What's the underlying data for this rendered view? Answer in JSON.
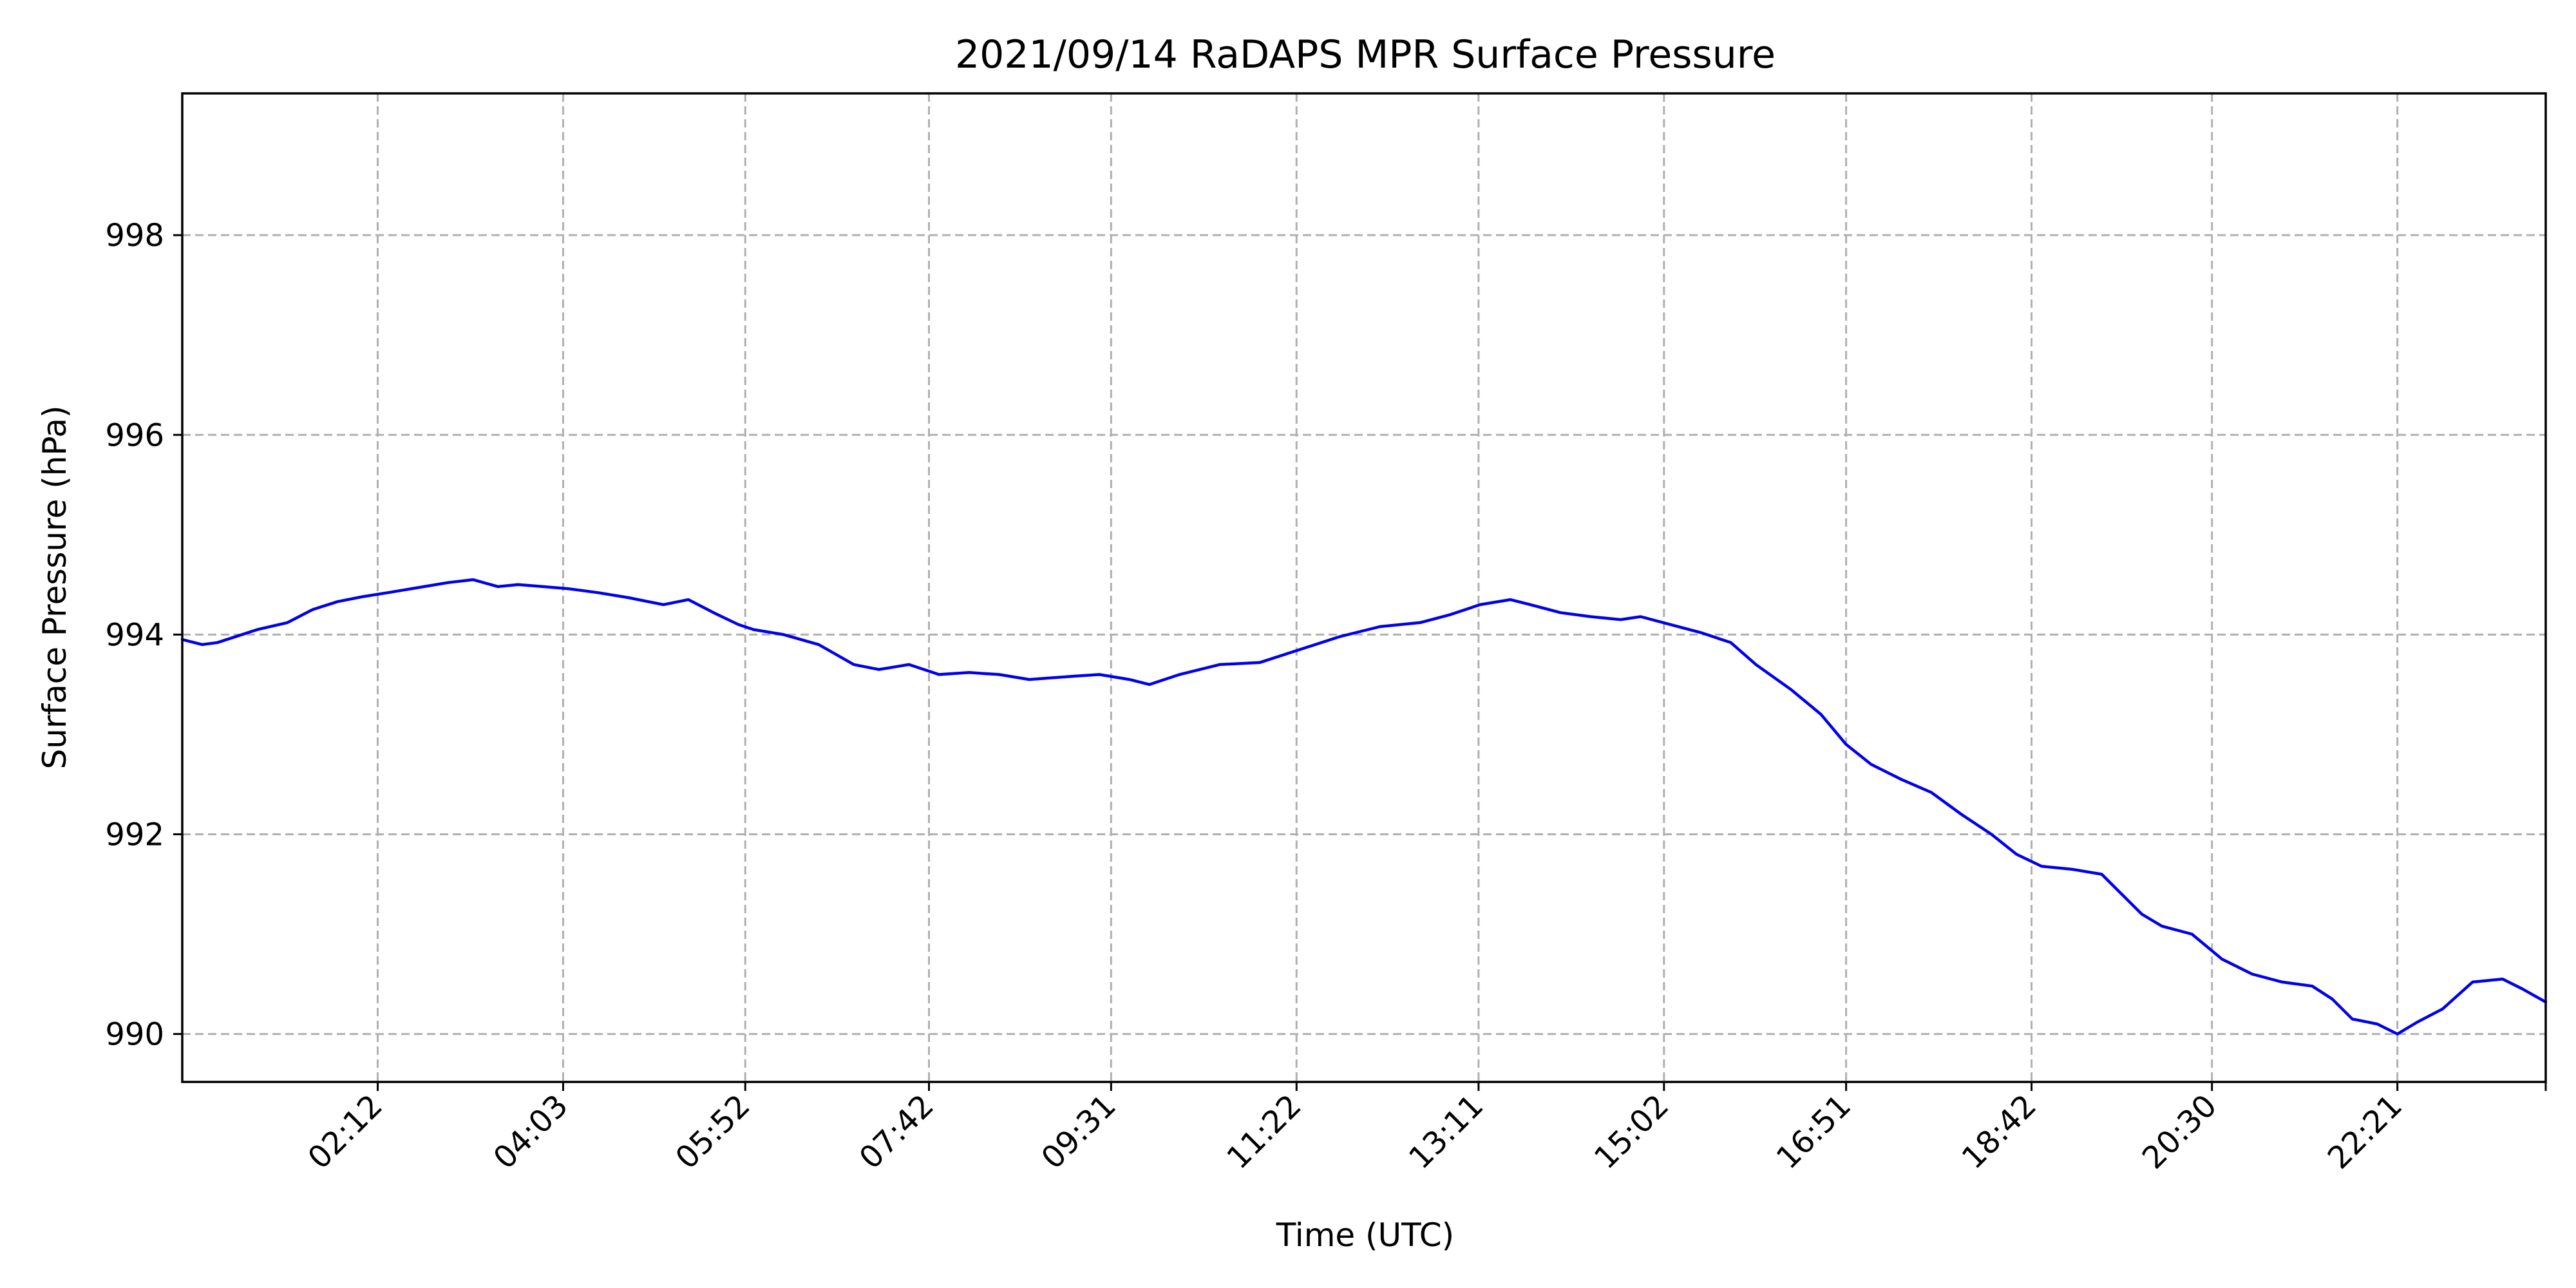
{
  "chart_data": {
    "type": "line",
    "title": "2021/09/14 RaDAPS MPR Surface Pressure",
    "xlabel": "Time (UTC)",
    "ylabel": "Surface Pressure (hPa)",
    "x_unit": "hours UTC",
    "xlim": [
      0.25,
      23.83
    ],
    "ylim": [
      989.52,
      999.42
    ],
    "x_ticks": [
      {
        "value": 2.2,
        "label": "02:12"
      },
      {
        "value": 4.05,
        "label": "04:03"
      },
      {
        "value": 5.867,
        "label": "05:52"
      },
      {
        "value": 7.7,
        "label": "07:42"
      },
      {
        "value": 9.517,
        "label": "09:31"
      },
      {
        "value": 11.367,
        "label": "11:22"
      },
      {
        "value": 13.183,
        "label": "13:11"
      },
      {
        "value": 15.033,
        "label": "15:02"
      },
      {
        "value": 16.85,
        "label": "16:51"
      },
      {
        "value": 18.7,
        "label": "18:42"
      },
      {
        "value": 20.5,
        "label": "20:30"
      },
      {
        "value": 22.35,
        "label": "22:21"
      },
      {
        "value": 23.83,
        "label": ""
      }
    ],
    "y_ticks": [
      {
        "value": 990,
        "label": "990"
      },
      {
        "value": 992,
        "label": "992"
      },
      {
        "value": 994,
        "label": "994"
      },
      {
        "value": 996,
        "label": "996"
      },
      {
        "value": 998,
        "label": "998"
      }
    ],
    "grid": true,
    "series": [
      {
        "color": "#0000ee",
        "x": [
          0.25,
          0.45,
          0.6,
          1.0,
          1.3,
          1.55,
          1.8,
          2.05,
          2.3,
          2.6,
          2.9,
          3.15,
          3.4,
          3.6,
          3.85,
          4.1,
          4.4,
          4.7,
          5.05,
          5.3,
          5.55,
          5.8,
          5.95,
          6.25,
          6.6,
          6.95,
          7.2,
          7.5,
          7.8,
          8.1,
          8.4,
          8.7,
          9.1,
          9.4,
          9.7,
          9.9,
          10.2,
          10.6,
          11.0,
          11.4,
          11.8,
          12.2,
          12.6,
          12.9,
          13.2,
          13.5,
          13.7,
          14.0,
          14.3,
          14.6,
          14.8,
          15.1,
          15.4,
          15.7,
          15.95,
          16.3,
          16.6,
          16.85,
          17.1,
          17.4,
          17.7,
          18.0,
          18.3,
          18.55,
          18.8,
          19.1,
          19.4,
          19.6,
          19.8,
          20.0,
          20.3,
          20.6,
          20.9,
          21.2,
          21.5,
          21.7,
          21.9,
          22.15,
          22.35,
          22.55,
          22.8,
          23.1,
          23.4,
          23.6,
          23.83
        ],
        "y": [
          993.95,
          993.9,
          993.92,
          994.05,
          994.12,
          994.25,
          994.33,
          994.38,
          994.42,
          994.47,
          994.52,
          994.55,
          994.48,
          994.5,
          994.48,
          994.46,
          994.42,
          994.37,
          994.3,
          994.35,
          994.22,
          994.1,
          994.05,
          994.0,
          993.9,
          993.7,
          993.65,
          993.7,
          993.6,
          993.62,
          993.6,
          993.55,
          993.58,
          993.6,
          993.55,
          993.5,
          993.6,
          993.7,
          993.72,
          993.85,
          993.98,
          994.08,
          994.12,
          994.2,
          994.3,
          994.35,
          994.3,
          994.22,
          994.18,
          994.15,
          994.18,
          994.1,
          994.02,
          993.92,
          993.7,
          993.45,
          993.2,
          992.9,
          992.7,
          992.55,
          992.42,
          992.2,
          992.0,
          991.8,
          991.68,
          991.65,
          991.6,
          991.4,
          991.2,
          991.08,
          991.0,
          990.75,
          990.6,
          990.52,
          990.48,
          990.35,
          990.15,
          990.1,
          990.0,
          990.12,
          990.25,
          990.52,
          990.55,
          990.45,
          990.32
        ]
      }
    ]
  }
}
